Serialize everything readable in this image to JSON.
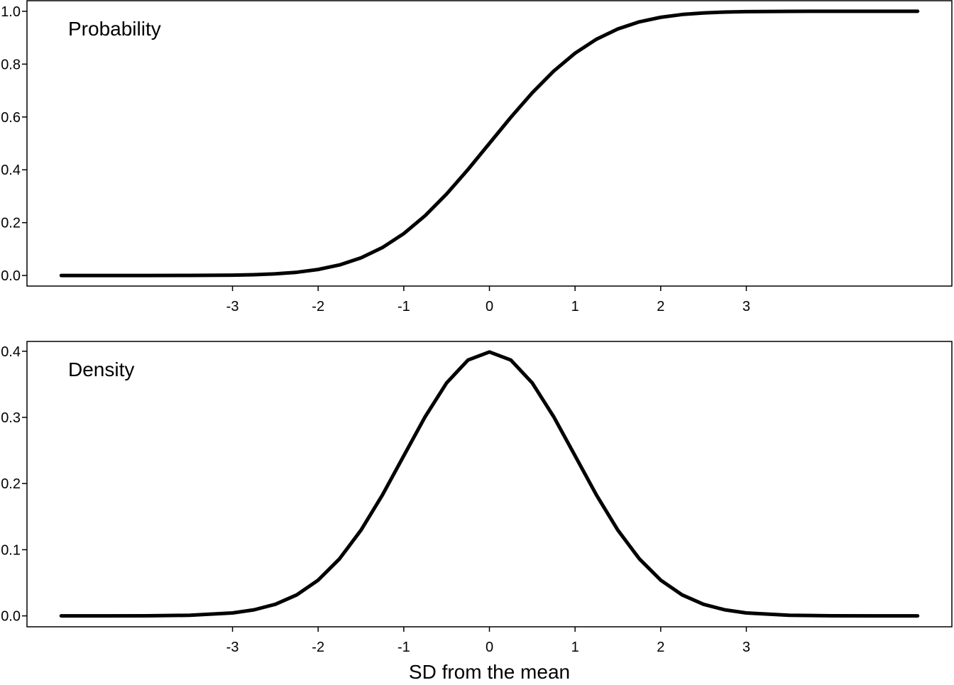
{
  "chart_data": [
    {
      "type": "line",
      "panel_label": "Probability",
      "x": [
        -5.0,
        -4.5,
        -4.0,
        -3.5,
        -3.0,
        -2.75,
        -2.5,
        -2.25,
        -2.0,
        -1.75,
        -1.5,
        -1.25,
        -1.0,
        -0.75,
        -0.5,
        -0.25,
        0.0,
        0.25,
        0.5,
        0.75,
        1.0,
        1.25,
        1.5,
        1.75,
        2.0,
        2.25,
        2.5,
        2.75,
        3.0,
        3.5,
        4.0,
        4.5,
        5.0
      ],
      "series": [
        {
          "values": [
            0.0,
            0.0,
            0.0,
            0.0002,
            0.0013,
            0.003,
            0.0062,
            0.0122,
            0.0228,
            0.0401,
            0.0668,
            0.1056,
            0.1587,
            0.2266,
            0.3085,
            0.4013,
            0.5,
            0.5987,
            0.6915,
            0.7734,
            0.8413,
            0.8944,
            0.9332,
            0.9599,
            0.9772,
            0.9878,
            0.9938,
            0.997,
            0.9987,
            0.9998,
            1.0,
            1.0,
            1.0
          ]
        }
      ],
      "xticks": [
        "-3",
        "-2",
        "-1",
        "0",
        "1",
        "2",
        "3"
      ],
      "yticks": [
        "0.0",
        "0.2",
        "0.4",
        "0.6",
        "0.8",
        "1.0"
      ],
      "xlim": [
        -5.4,
        5.4
      ],
      "ylim": [
        -0.04,
        1.04
      ],
      "xlabel": "",
      "ylabel": "",
      "grid": false
    },
    {
      "type": "line",
      "panel_label": "Density",
      "x": [
        -5.0,
        -4.5,
        -4.0,
        -3.5,
        -3.0,
        -2.75,
        -2.5,
        -2.25,
        -2.0,
        -1.75,
        -1.5,
        -1.25,
        -1.0,
        -0.75,
        -0.5,
        -0.25,
        0.0,
        0.25,
        0.5,
        0.75,
        1.0,
        1.25,
        1.5,
        1.75,
        2.0,
        2.25,
        2.5,
        2.75,
        3.0,
        3.5,
        4.0,
        4.5,
        5.0
      ],
      "series": [
        {
          "values": [
            0.0,
            0.0,
            0.0001,
            0.0009,
            0.0044,
            0.0091,
            0.0175,
            0.0317,
            0.054,
            0.0863,
            0.1295,
            0.1826,
            0.242,
            0.3011,
            0.3521,
            0.3867,
            0.3989,
            0.3867,
            0.3521,
            0.3011,
            0.242,
            0.1826,
            0.1295,
            0.0863,
            0.054,
            0.0317,
            0.0175,
            0.0091,
            0.0044,
            0.0009,
            0.0001,
            0.0,
            0.0
          ]
        }
      ],
      "xticks": [
        "-3",
        "-2",
        "-1",
        "0",
        "1",
        "2",
        "3"
      ],
      "yticks": [
        "0.0",
        "0.1",
        "0.2",
        "0.3",
        "0.4"
      ],
      "xlim": [
        -5.4,
        5.4
      ],
      "ylim": [
        -0.0165,
        0.4148
      ],
      "xlabel": "SD from the mean",
      "ylabel": "",
      "grid": false
    }
  ]
}
